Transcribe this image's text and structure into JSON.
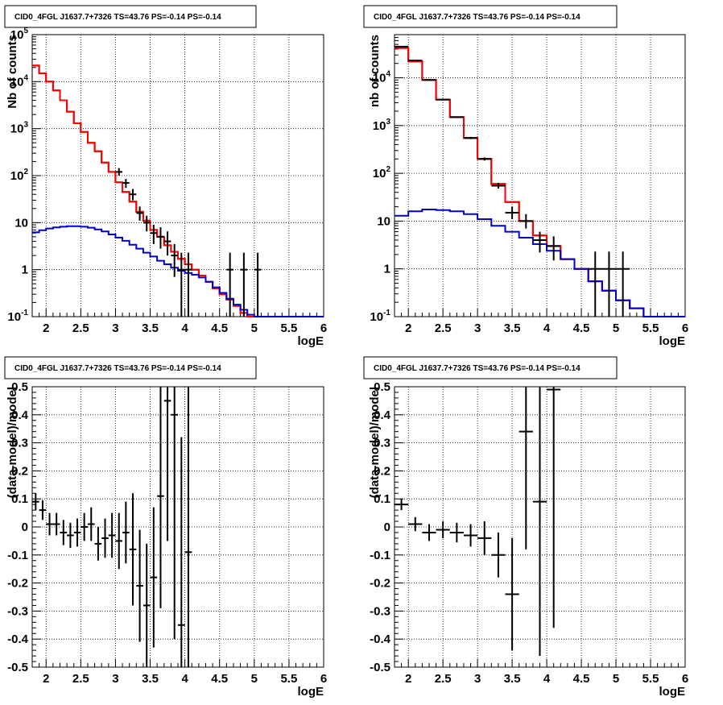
{
  "chart_data": [
    {
      "type": "line",
      "title": "CID0_4FGL J1637.7+7326 TS=43.76 PS=-0.14 PS=-0.14",
      "xlabel": "logE",
      "ylabel": "Nb of counts",
      "yscale": "log",
      "xlim": [
        1.8,
        6.0
      ],
      "ylim": [
        0.1,
        100000
      ],
      "grid": true,
      "x_ticks": [
        "2",
        "2.5",
        "3",
        "3.5",
        "4",
        "4.5",
        "5",
        "5.5",
        "6"
      ],
      "y_ticks": [
        "10^-1",
        "1",
        "10",
        "10^2",
        "10^3",
        "10^4",
        "10^5"
      ],
      "bin_edges": [
        1.8,
        1.9,
        2.0,
        2.1,
        2.2,
        2.3,
        2.4,
        2.5,
        2.6,
        2.7,
        2.8,
        2.9,
        3.0,
        3.1,
        3.2,
        3.3,
        3.4,
        3.5,
        3.6,
        3.7,
        3.8,
        3.9,
        4.0,
        4.1,
        4.2,
        4.3,
        4.4,
        4.5,
        4.6,
        4.7,
        4.8,
        4.9,
        5.0,
        5.1,
        5.2,
        5.3,
        5.4,
        5.5,
        5.6,
        5.7,
        5.8,
        5.9,
        6.0
      ],
      "series": [
        {
          "color": "#000000",
          "style": "step",
          "values": [
            22000,
            15000,
            10000,
            6500,
            4000,
            2300,
            1300,
            850,
            500,
            330,
            190,
            120,
            72,
            45,
            28,
            17,
            11,
            7,
            5,
            3.3,
            2.4,
            1.7,
            1.3,
            1.0,
            0.75,
            0.55,
            0.4,
            0.3,
            0.23,
            0.17,
            0.12,
            0.1,
            0.1,
            0.1,
            0.1,
            0.1,
            0.1,
            0.1,
            0.1,
            0.1,
            0.1,
            0.1
          ]
        },
        {
          "color": "#ff0000",
          "style": "step",
          "values": [
            22000,
            15000,
            10000,
            6500,
            4000,
            2300,
            1300,
            850,
            500,
            330,
            190,
            120,
            72,
            45,
            28,
            17,
            11,
            7,
            5,
            3.3,
            2.4,
            1.7,
            1.3,
            1.0,
            0.75,
            0.55,
            0.4,
            0.3,
            0.23,
            0.17,
            0.12,
            0.1,
            0.1,
            0.1,
            0.1,
            0.1,
            0.1,
            0.1,
            0.1,
            0.1,
            0.1,
            0.1
          ]
        },
        {
          "color": "#0000cc",
          "style": "step",
          "values": [
            6.2,
            6.9,
            7.5,
            7.9,
            8.2,
            8.4,
            8.4,
            8.2,
            7.8,
            7.2,
            6.5,
            5.6,
            4.8,
            4.1,
            3.4,
            2.8,
            2.3,
            1.9,
            1.55,
            1.3,
            1.1,
            0.95,
            0.85,
            0.78,
            0.68,
            0.55,
            0.42,
            0.32,
            0.24,
            0.18,
            0.14,
            0.11,
            0.1,
            0.1,
            0.1,
            0.1,
            0.1,
            0.1,
            0.1,
            0.1,
            0.1,
            0.1
          ]
        }
      ],
      "data_points": {
        "x": [
          3.05,
          3.15,
          3.25,
          3.35,
          3.45,
          3.55,
          3.65,
          3.75,
          3.85,
          3.95,
          4.05,
          4.65,
          4.85,
          5.05
        ],
        "y": [
          120,
          70,
          40,
          16,
          10,
          6,
          5,
          4,
          2,
          1,
          1,
          1,
          1,
          1
        ],
        "y_low": [
          100,
          55,
          30,
          11,
          6.5,
          3.5,
          2.8,
          2.0,
          0.7,
          0.1,
          0.1,
          0.1,
          0.1,
          0.1
        ],
        "y_high": [
          145,
          85,
          52,
          22,
          14,
          9,
          8,
          6.5,
          3.5,
          2.3,
          2.3,
          2.3,
          2.3,
          2.3
        ]
      }
    },
    {
      "type": "line",
      "title": "CID0_4FGL J1637.7+7326 TS=43.76 PS=-0.14 PS=-0.14",
      "xlabel": "logE",
      "ylabel": "nb of counts",
      "yscale": "log",
      "xlim": [
        1.8,
        6.0
      ],
      "ylim": [
        0.1,
        80000
      ],
      "grid": true,
      "x_ticks": [
        "2",
        "2.5",
        "3",
        "3.5",
        "4",
        "4.5",
        "5",
        "5.5",
        "6"
      ],
      "y_ticks": [
        "10^-1",
        "1",
        "10",
        "10^2",
        "10^3",
        "10^4"
      ],
      "bin_edges": [
        1.8,
        2.0,
        2.2,
        2.4,
        2.6,
        2.8,
        3.0,
        3.2,
        3.4,
        3.6,
        3.8,
        4.0,
        4.2,
        4.4,
        4.6,
        4.8,
        5.0,
        5.2,
        5.4,
        5.6,
        5.8,
        6.0
      ],
      "series": [
        {
          "color": "#000000",
          "style": "step",
          "values": [
            42000,
            22000,
            9000,
            3500,
            1500,
            550,
            200,
            60,
            25,
            10,
            5,
            3,
            1.6,
            1.0,
            0.55,
            0.35,
            0.22,
            0.15,
            0.1,
            0.1,
            0.1
          ]
        },
        {
          "color": "#ff0000",
          "style": "step",
          "values": [
            42000,
            22000,
            9000,
            3500,
            1500,
            550,
            200,
            60,
            25,
            10,
            5,
            3,
            1.6,
            1.0,
            0.55,
            0.35,
            0.22,
            0.15,
            0.1,
            0.1,
            0.1
          ]
        },
        {
          "color": "#0000cc",
          "style": "step",
          "values": [
            13,
            16,
            17.5,
            17,
            16,
            14,
            11,
            8,
            6,
            4.5,
            3.3,
            2.4,
            1.6,
            1.0,
            0.55,
            0.35,
            0.22,
            0.15,
            0.1,
            0.1,
            0.1
          ]
        }
      ],
      "data_points": {
        "x": [
          1.9,
          2.1,
          2.3,
          2.5,
          2.7,
          2.9,
          3.1,
          3.3,
          3.5,
          3.7,
          3.9,
          4.1,
          4.7,
          4.9,
          5.1
        ],
        "y": [
          45000,
          23000,
          9000,
          3500,
          1500,
          550,
          200,
          55,
          15,
          10,
          4,
          3,
          1,
          1,
          1
        ],
        "y_low": [
          44000,
          22500,
          8800,
          3400,
          1450,
          520,
          185,
          48,
          11,
          7,
          2.2,
          1.5,
          0.1,
          0.1,
          0.1
        ],
        "y_high": [
          46000,
          23500,
          9200,
          3600,
          1550,
          580,
          215,
          63,
          20,
          14,
          6,
          4.8,
          2.3,
          2.3,
          2.3
        ]
      }
    },
    {
      "type": "scatter",
      "title": "CID0_4FGL J1637.7+7326 TS=43.76 PS=-0.14 PS=-0.14",
      "xlabel": "logE",
      "ylabel": "(data-model)/model",
      "xlim": [
        1.8,
        6.0
      ],
      "ylim": [
        -0.5,
        0.5
      ],
      "grid": true,
      "x_ticks": [
        "2",
        "2.5",
        "3",
        "3.5",
        "4",
        "4.5",
        "5",
        "5.5",
        "6"
      ],
      "y_ticks": [
        "-0.5",
        "-0.4",
        "-0.3",
        "-0.2",
        "-0.1",
        "0",
        "0.1",
        "0.2",
        "0.3",
        "0.4",
        "0.5"
      ],
      "points": {
        "x": [
          1.85,
          1.95,
          2.05,
          2.15,
          2.25,
          2.35,
          2.45,
          2.55,
          2.65,
          2.75,
          2.85,
          2.95,
          3.05,
          3.15,
          3.25,
          3.35,
          3.45,
          3.55,
          3.65,
          3.75,
          3.85,
          3.95,
          4.05
        ],
        "y": [
          0.09,
          0.06,
          0.01,
          0.01,
          -0.02,
          -0.03,
          -0.02,
          0.0,
          0.01,
          -0.06,
          -0.04,
          -0.03,
          -0.05,
          -0.02,
          -0.08,
          -0.21,
          -0.28,
          -0.18,
          0.11,
          0.45,
          0.4,
          -0.35,
          -0.09
        ],
        "xerr": 0.05,
        "yerr": [
          0.03,
          0.035,
          0.04,
          0.04,
          0.045,
          0.045,
          0.05,
          0.05,
          0.06,
          0.06,
          0.07,
          0.08,
          0.1,
          0.11,
          0.2,
          0.2,
          0.22,
          0.25,
          0.4,
          0.5,
          0.8,
          0.67,
          0.7
        ]
      }
    },
    {
      "type": "scatter",
      "title": "CID0_4FGL J1637.7+7326 TS=43.76 PS=-0.14 PS=-0.14",
      "xlabel": "logE",
      "ylabel": "(data-model)/model",
      "xlim": [
        1.8,
        6.0
      ],
      "ylim": [
        -0.5,
        0.5
      ],
      "grid": true,
      "x_ticks": [
        "2",
        "2.5",
        "3",
        "3.5",
        "4",
        "4.5",
        "5",
        "5.5",
        "6"
      ],
      "y_ticks": [
        "-0.5",
        "-0.4",
        "-0.3",
        "-0.2",
        "-0.1",
        "0",
        "0.1",
        "0.2",
        "0.3",
        "0.4",
        "0.5"
      ],
      "points": {
        "x": [
          1.9,
          2.1,
          2.3,
          2.5,
          2.7,
          2.9,
          3.1,
          3.3,
          3.5,
          3.7,
          3.9,
          4.1
        ],
        "y": [
          0.08,
          0.01,
          -0.02,
          -0.01,
          -0.02,
          -0.03,
          -0.04,
          -0.1,
          -0.24,
          0.34,
          0.09,
          0.49
        ],
        "xerr": 0.1,
        "yerr": [
          0.02,
          0.025,
          0.03,
          0.03,
          0.035,
          0.04,
          0.06,
          0.08,
          0.2,
          0.42,
          0.55,
          0.85
        ]
      }
    }
  ]
}
